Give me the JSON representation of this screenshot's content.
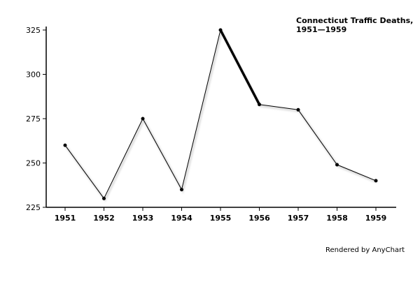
{
  "chart_data": {
    "type": "line",
    "title_lines": [
      "Connecticut Traffic Deaths,",
      "1951—1959"
    ],
    "categories": [
      "1951",
      "1952",
      "1953",
      "1954",
      "1955",
      "1956",
      "1957",
      "1958",
      "1959"
    ],
    "values": [
      260,
      230,
      275,
      235,
      325,
      283,
      280,
      249,
      240
    ],
    "emphasized_segment": {
      "from": "1955",
      "to": "1956"
    },
    "ylim": [
      225,
      325
    ],
    "yticks": [
      225,
      250,
      275,
      300,
      325
    ],
    "grid": false,
    "line_color": "#000000"
  },
  "footer": {
    "credit": "Rendered by AnyChart"
  }
}
